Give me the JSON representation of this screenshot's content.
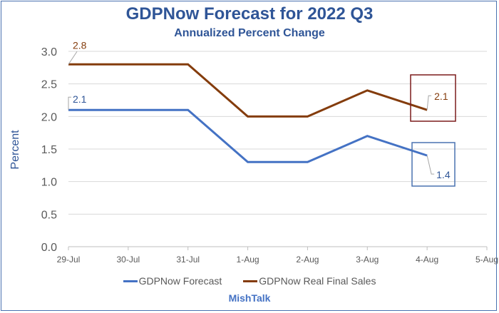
{
  "chart_data": {
    "type": "line",
    "title": "GDPNow Forecast for 2022 Q3",
    "subtitle": "Annualized Percent Change",
    "xlabel": "",
    "ylabel": "Percent",
    "categories": [
      "29-Jul",
      "30-Jul",
      "31-Jul",
      "1-Aug",
      "2-Aug",
      "3-Aug",
      "4-Aug",
      "5-Aug"
    ],
    "yticks": [
      "0.0",
      "0.5",
      "1.0",
      "1.5",
      "2.0",
      "2.5",
      "3.0"
    ],
    "ylim": [
      0,
      3.0
    ],
    "grid": true,
    "legend_position": "bottom",
    "series": [
      {
        "name": "GDPNow Forecast",
        "color": "#4472c4",
        "values": [
          2.1,
          2.1,
          2.1,
          1.3,
          1.3,
          1.7,
          1.4
        ]
      },
      {
        "name": "GDPNow Real Final Sales",
        "color": "#843c0c",
        "values": [
          2.8,
          2.8,
          2.8,
          2.0,
          2.0,
          2.4,
          2.1
        ]
      }
    ],
    "annotations": [
      {
        "series": "GDPNow Real Final Sales",
        "x": "29-Jul",
        "text": "2.8",
        "color": "#843c0c"
      },
      {
        "series": "GDPNow Forecast",
        "x": "29-Jul",
        "text": "2.1",
        "color": "#2f5597"
      },
      {
        "series": "GDPNow Real Final Sales",
        "x": "4-Aug",
        "text": "2.1",
        "color": "#843c0c",
        "boxed": true,
        "box_color": "#7b1c1c"
      },
      {
        "series": "GDPNow Forecast",
        "x": "4-Aug",
        "text": "1.4",
        "color": "#2f5597",
        "boxed": true,
        "box_color": "#4a72b0"
      }
    ]
  },
  "footer": "MishTalk"
}
